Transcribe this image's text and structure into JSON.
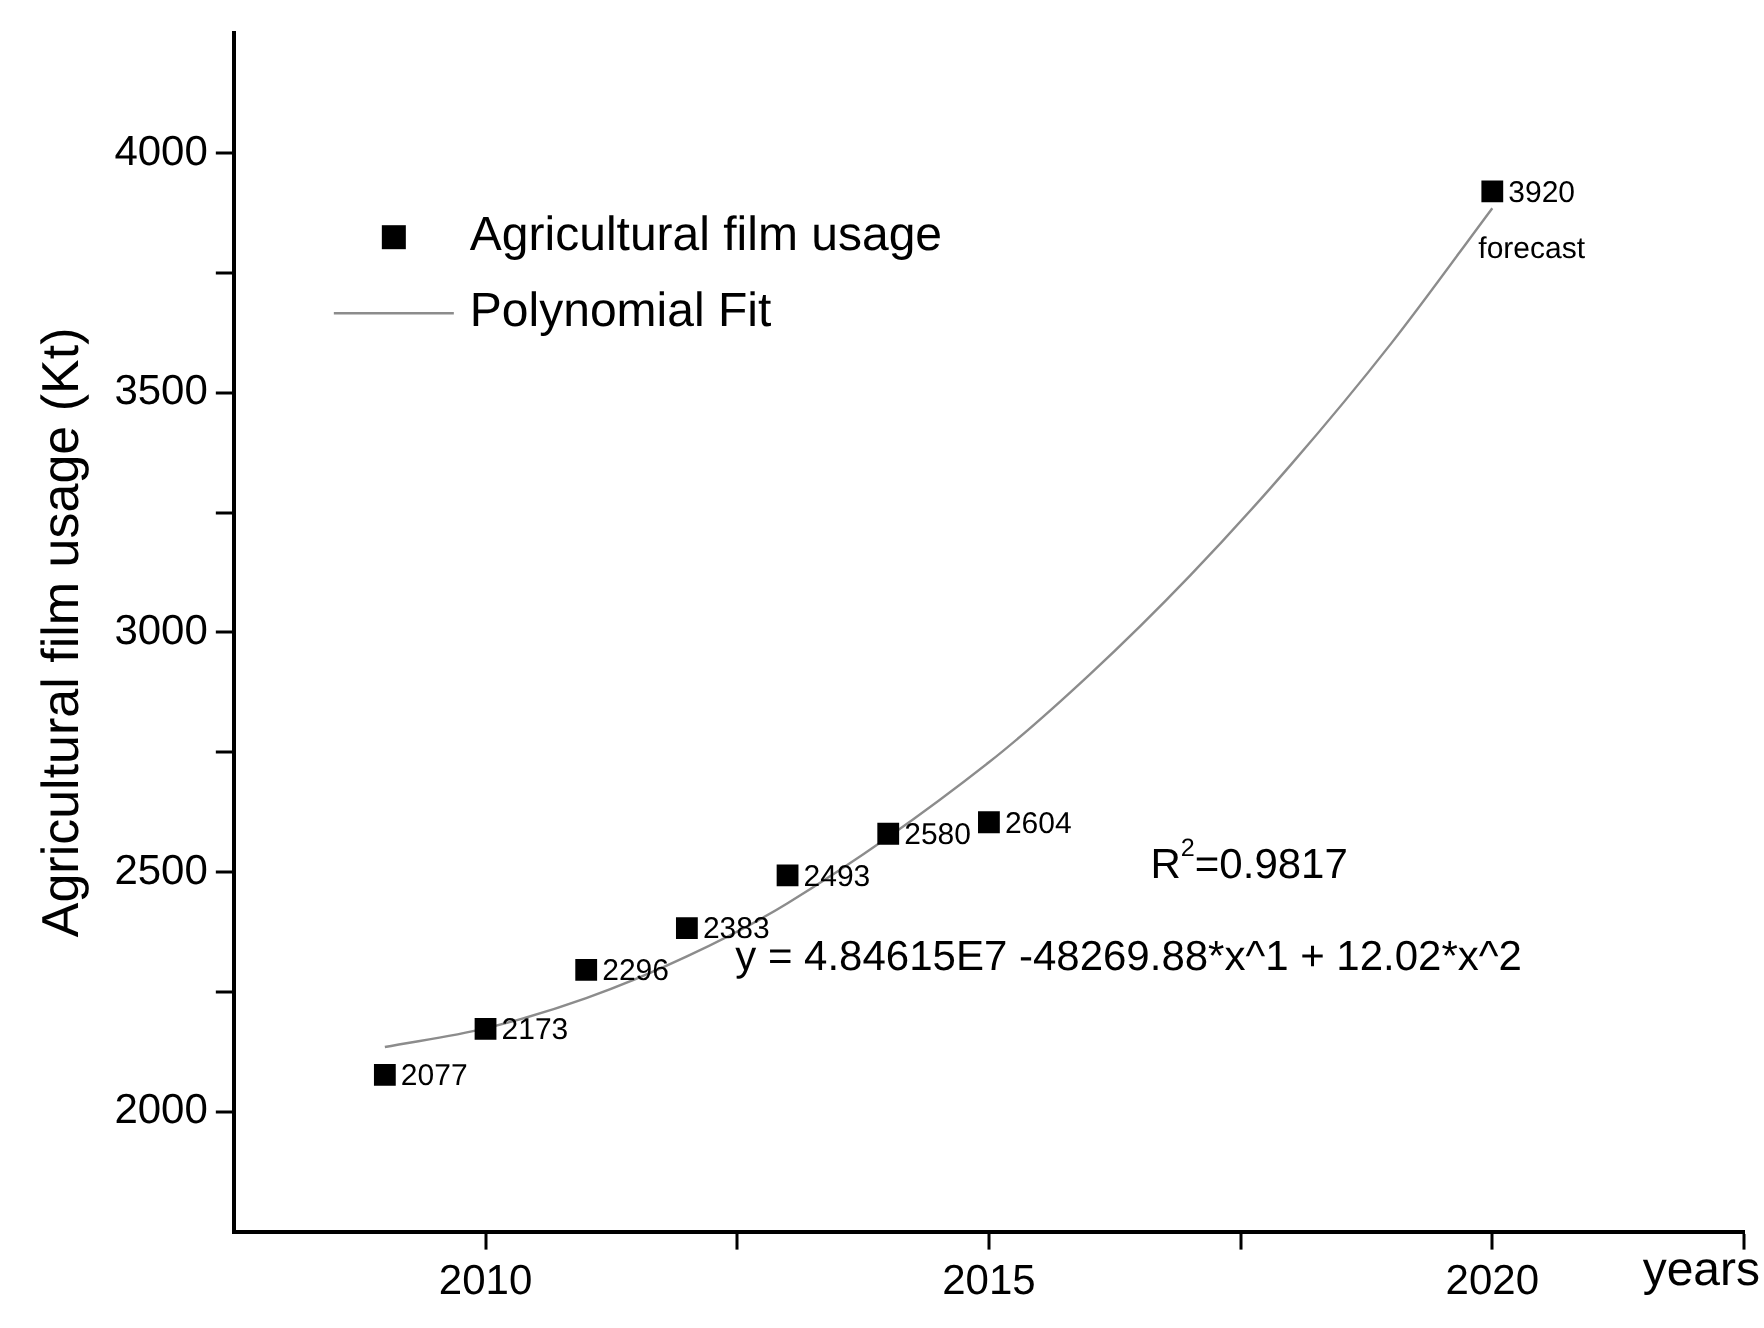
{
  "chart_data": {
    "type": "scatter",
    "xlabel": "years",
    "ylabel": "Agricultural film usage (Kt)",
    "xlim": [
      2007.5,
      2022.5
    ],
    "xticks": [
      2010,
      {
        "value": 2012.5,
        "label": null
      },
      2015,
      {
        "value": 2017.5,
        "label": null
      },
      2020,
      {
        "value": 2022.5,
        "label": null
      }
    ],
    "ylim": [
      1750,
      4250
    ],
    "yticks": [
      2000,
      {
        "value": 2250,
        "label": null
      },
      2500,
      {
        "value": 2750,
        "label": null
      },
      3000,
      {
        "value": 3250,
        "label": null
      },
      3500,
      {
        "value": 3750,
        "label": null
      },
      4000
    ],
    "grid": false,
    "legend": "top left",
    "marker": "square",
    "series": [
      {
        "name": "Agricultural film usage",
        "type": "scatter",
        "color": "#000000",
        "x": [
          2009,
          2010,
          2011,
          2012,
          2013,
          2014,
          2015,
          2020
        ],
        "values": [
          2077,
          2173,
          2296,
          2383,
          2493,
          2580,
          2604,
          3920
        ],
        "value_labels": [
          "2077",
          "2173",
          "2296",
          "2383",
          "2493",
          "2580",
          "2604",
          "3920"
        ]
      },
      {
        "name": "Polynomial Fit",
        "type": "line",
        "color": "#8c8c8c",
        "marker": "none",
        "line_style": "solid",
        "x": [
          2009,
          2010,
          2011,
          2012,
          2013,
          2015,
          2016,
          2017,
          2018,
          2019,
          2020
        ],
        "values": [
          2135,
          2174,
          2237,
          2324,
          2435,
          2729,
          2912,
          3119,
          3350,
          3604,
          3885
        ]
      }
    ],
    "annotations": [
      {
        "text": "forecast",
        "x": 2020,
        "y": 3920
      },
      "R$^{2}$=0.9817",
      "y = 4.84615E7 -48269.88*x^1 + 12.02*x^2"
    ]
  }
}
